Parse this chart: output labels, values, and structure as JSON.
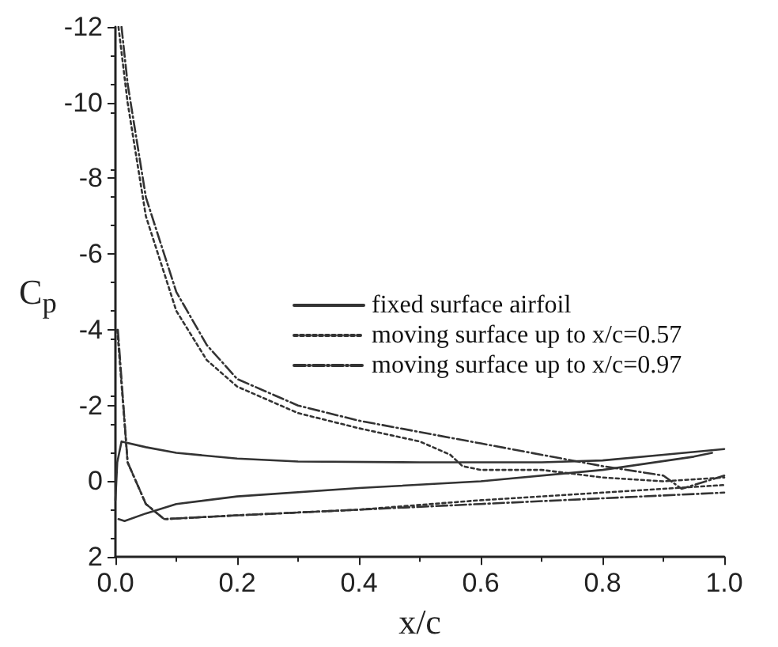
{
  "chart_data": {
    "type": "line",
    "xlabel": "x/c",
    "ylabel": "C$_{p}$",
    "xlim": [
      0,
      1.0
    ],
    "xticks": [
      {
        "value": 0,
        "label": "0.0"
      },
      0.2,
      0.4,
      0.6,
      0.8,
      {
        "value": 1,
        "label": "1.0"
      }
    ],
    "ylim": [
      2,
      -12
    ],
    "yticks": [
      2,
      0,
      -2,
      -4,
      -6,
      -8,
      -10,
      -12
    ],
    "grid": false,
    "legend": "right",
    "marker": "none",
    "series": [
      {
        "name": "fixed surface airfoil",
        "color": "#333333",
        "line_style": "solid",
        "x": [
          0.0,
          0.003,
          0.01,
          0.05,
          0.1,
          0.2,
          0.3,
          0.5,
          0.7,
          0.8,
          0.9,
          1.0
        ],
        "values": [
          0.5,
          -0.5,
          -1.05,
          -0.9,
          -0.75,
          -0.6,
          -0.52,
          -0.5,
          -0.5,
          -0.55,
          -0.7,
          -0.85
        ]
      },
      {
        "color": "#333333",
        "line_style": "solid",
        "x": [
          0.005,
          0.015,
          0.05,
          0.1,
          0.2,
          0.4,
          0.6,
          0.8,
          0.95,
          0.98
        ],
        "values": [
          1.0,
          1.05,
          0.85,
          0.6,
          0.4,
          0.18,
          0.0,
          -0.3,
          -0.65,
          -0.75
        ]
      },
      {
        "name": "moving surface up to x/c=0.57",
        "color": "#333333",
        "line_style": "dotted",
        "x": [
          0.005,
          0.02,
          0.05,
          0.1,
          0.15,
          0.2,
          0.3,
          0.4,
          0.5,
          0.55,
          0.57,
          0.6,
          0.7,
          0.8,
          0.9,
          1.0
        ],
        "values": [
          -12,
          -10,
          -7,
          -4.5,
          -3.2,
          -2.5,
          -1.8,
          -1.4,
          -1.05,
          -0.7,
          -0.4,
          -0.3,
          -0.3,
          -0.1,
          0.0,
          -0.1
        ]
      },
      {
        "color": "#333333",
        "line_style": "dotted",
        "x": [
          0.003,
          0.02,
          0.05,
          0.08,
          0.2,
          0.4,
          0.6,
          0.8,
          1.0
        ],
        "values": [
          -4,
          -0.5,
          0.6,
          1.0,
          0.9,
          0.75,
          0.5,
          0.3,
          0.1
        ]
      },
      {
        "name": "moving surface up to x/c=0.97",
        "color": "#333333",
        "line_style": "dashed",
        "x": [
          0.01,
          0.02,
          0.05,
          0.1,
          0.15,
          0.2,
          0.3,
          0.4,
          0.5,
          0.6,
          0.7,
          0.8,
          0.9,
          0.93,
          0.97,
          1.0
        ],
        "values": [
          -12,
          -10.5,
          -7.5,
          -5,
          -3.6,
          -2.7,
          -2.0,
          -1.6,
          -1.3,
          -1.0,
          -0.7,
          -0.4,
          -0.15,
          0.2,
          0.0,
          -0.15
        ]
      },
      {
        "color": "#333333",
        "line_style": "dashed",
        "x": [
          0.004,
          0.02,
          0.05,
          0.08,
          0.2,
          0.4,
          0.6,
          0.8,
          1.0
        ],
        "values": [
          -4,
          -0.5,
          0.6,
          1.0,
          0.9,
          0.75,
          0.6,
          0.45,
          0.3
        ]
      }
    ]
  }
}
